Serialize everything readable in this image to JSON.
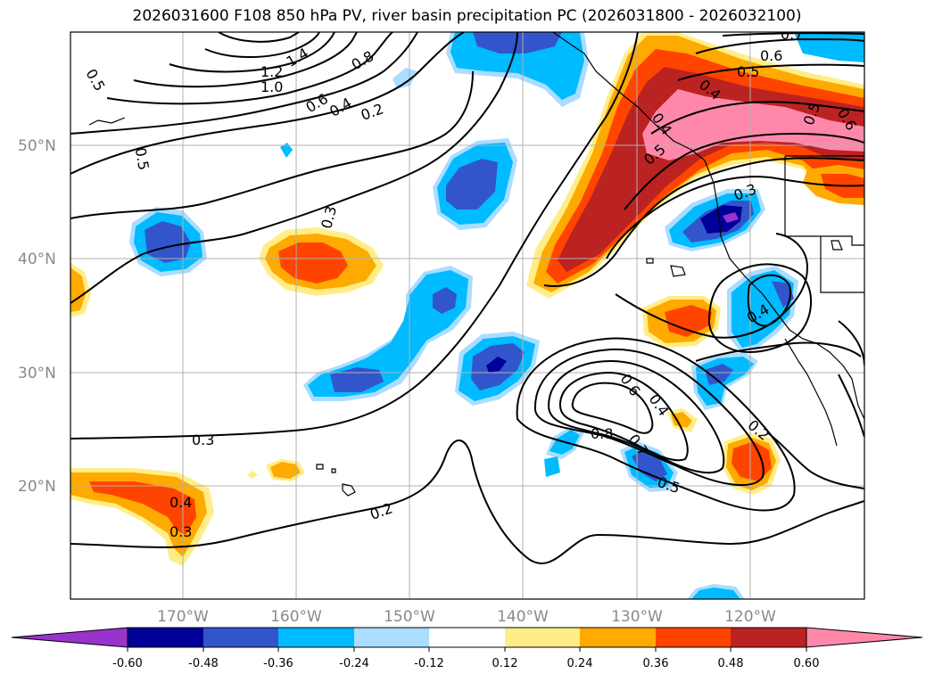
{
  "title": "2026031600 F108 850 hPa PV, river basin precipitation PC (2026031800 - 2026032100)",
  "map": {
    "lat_labels": [
      "50°N",
      "40°N",
      "30°N",
      "20°N"
    ],
    "lon_labels": [
      "170°W",
      "160°W",
      "150°W",
      "140°W",
      "130°W",
      "120°W"
    ],
    "contour_labels": [
      "1.2",
      "1.0",
      "1.4",
      "0.8",
      "0.6",
      "0.4",
      "0.2",
      "0.5",
      "0.5",
      "0.3",
      "0.3",
      "0.4",
      "0.3",
      "0.2",
      "0.8",
      "0.6",
      "0.4",
      "0.7",
      "0.5",
      "0.2",
      "0.4",
      "0.3",
      "0.7",
      "0.6",
      "0.5",
      "0.4",
      "0.5",
      "0.6",
      "0.5",
      "0.4"
    ]
  },
  "colorbar": {
    "ticks": [
      "-0.60",
      "-0.48",
      "-0.36",
      "-0.24",
      "-0.12",
      "0.12",
      "0.24",
      "0.36",
      "0.48",
      "0.60"
    ],
    "colors": [
      "#9933cc",
      "#000099",
      "#3355cc",
      "#00bbff",
      "#aaddff",
      "#ffffff",
      "#ffee88",
      "#ffaa00",
      "#ff4400",
      "#bb2222",
      "#ff88aa"
    ]
  }
}
